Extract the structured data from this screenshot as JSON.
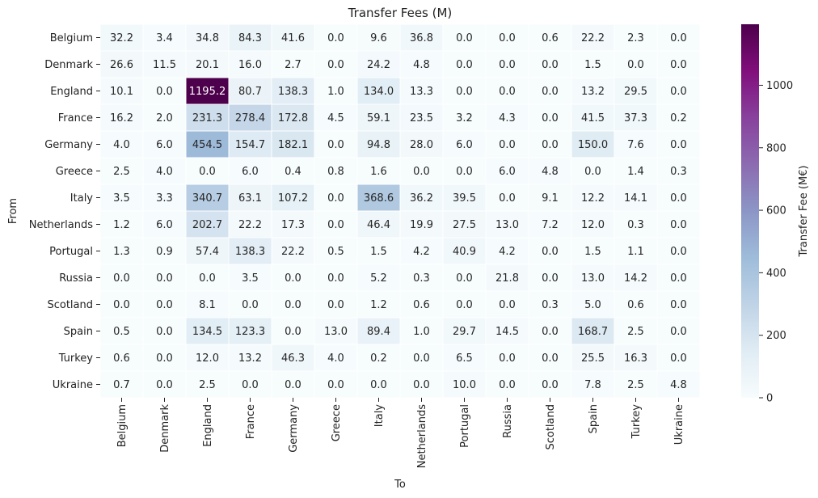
{
  "chart_data": {
    "type": "heatmap",
    "title": "Transfer Fees (M)",
    "xlabel": "To",
    "ylabel": "From",
    "x_categories": [
      "Belgium",
      "Denmark",
      "England",
      "France",
      "Germany",
      "Greece",
      "Italy",
      "Netherlands",
      "Portugal",
      "Russia",
      "Scotland",
      "Spain",
      "Turkey",
      "Ukraine"
    ],
    "y_categories": [
      "Belgium",
      "Denmark",
      "England",
      "France",
      "Germany",
      "Greece",
      "Italy",
      "Netherlands",
      "Portugal",
      "Russia",
      "Scotland",
      "Spain",
      "Turkey",
      "Ukraine"
    ],
    "values": [
      [
        32.2,
        3.4,
        34.8,
        84.3,
        41.6,
        0.0,
        9.6,
        36.8,
        0.0,
        0.0,
        0.6,
        22.2,
        2.3,
        0.0
      ],
      [
        26.6,
        11.5,
        20.1,
        16.0,
        2.7,
        0.0,
        24.2,
        4.8,
        0.0,
        0.0,
        0.0,
        1.5,
        0.0,
        0.0
      ],
      [
        10.1,
        0.0,
        1195.2,
        80.7,
        138.3,
        1.0,
        134.0,
        13.3,
        0.0,
        0.0,
        0.0,
        13.2,
        29.5,
        0.0
      ],
      [
        16.2,
        2.0,
        231.3,
        278.4,
        172.8,
        4.5,
        59.1,
        23.5,
        3.2,
        4.3,
        0.0,
        41.5,
        37.3,
        0.2
      ],
      [
        4.0,
        6.0,
        454.5,
        154.7,
        182.1,
        0.0,
        94.8,
        28.0,
        6.0,
        0.0,
        0.0,
        150.0,
        7.6,
        0.0
      ],
      [
        2.5,
        4.0,
        0.0,
        6.0,
        0.4,
        0.8,
        1.6,
        0.0,
        0.0,
        6.0,
        4.8,
        0.0,
        1.4,
        0.3
      ],
      [
        3.5,
        3.3,
        340.7,
        63.1,
        107.2,
        0.0,
        368.6,
        36.2,
        39.5,
        0.0,
        9.1,
        12.2,
        14.1,
        0.0
      ],
      [
        1.2,
        6.0,
        202.7,
        22.2,
        17.3,
        0.0,
        46.4,
        19.9,
        27.5,
        13.0,
        7.2,
        12.0,
        0.3,
        0.0
      ],
      [
        1.3,
        0.9,
        57.4,
        138.3,
        22.2,
        0.5,
        1.5,
        4.2,
        40.9,
        4.2,
        0.0,
        1.5,
        1.1,
        0.0
      ],
      [
        0.0,
        0.0,
        0.0,
        3.5,
        0.0,
        0.0,
        5.2,
        0.3,
        0.0,
        21.8,
        0.0,
        13.0,
        14.2,
        0.0
      ],
      [
        0.0,
        0.0,
        8.1,
        0.0,
        0.0,
        0.0,
        1.2,
        0.6,
        0.0,
        0.0,
        0.3,
        5.0,
        0.6,
        0.0
      ],
      [
        0.5,
        0.0,
        134.5,
        123.3,
        0.0,
        13.0,
        89.4,
        1.0,
        29.7,
        14.5,
        0.0,
        168.7,
        2.5,
        0.0
      ],
      [
        0.6,
        0.0,
        12.0,
        13.2,
        46.3,
        4.0,
        0.2,
        0.0,
        6.5,
        0.0,
        0.0,
        25.5,
        16.3,
        0.0
      ],
      [
        0.7,
        0.0,
        2.5,
        0.0,
        0.0,
        0.0,
        0.0,
        0.0,
        10.0,
        0.0,
        0.0,
        7.8,
        2.5,
        4.8
      ]
    ],
    "value_format": "1 decimal",
    "colorbar": {
      "label": "Transfer Fee (M€)",
      "min": 0,
      "max": 1195.2,
      "ticks": [
        "0",
        "200",
        "400",
        "600",
        "800",
        "1000"
      ],
      "colormap": "BuPu",
      "color_stops": [
        "#f7fcfd",
        "#e0ecf4",
        "#bfd3e6",
        "#9ebcda",
        "#8c96c6",
        "#8c6bb1",
        "#88419d",
        "#810f7c",
        "#4d004b"
      ]
    },
    "cell_border_color": "#ffffff",
    "text_colors": {
      "light_cells": "#262626",
      "dark_cells": "#ffffff"
    }
  }
}
